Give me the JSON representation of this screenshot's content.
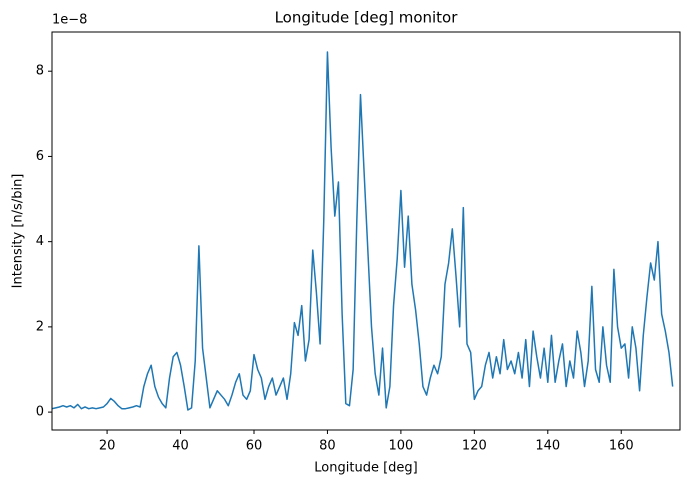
{
  "chart_data": {
    "type": "line",
    "title": "Longitude [deg] monitor",
    "x_label": "Longitude [deg]",
    "y_label": "Intensity [n/s/bin]",
    "y_offset_label": "1e−8",
    "x": [
      5,
      6,
      7,
      8,
      9,
      10,
      11,
      12,
      13,
      14,
      15,
      16,
      17,
      18,
      19,
      20,
      21,
      22,
      23,
      24,
      25,
      26,
      27,
      28,
      29,
      30,
      31,
      32,
      33,
      34,
      35,
      36,
      37,
      38,
      39,
      40,
      41,
      42,
      43,
      44,
      45,
      46,
      47,
      48,
      49,
      50,
      51,
      52,
      53,
      54,
      55,
      56,
      57,
      58,
      59,
      60,
      61,
      62,
      63,
      64,
      65,
      66,
      67,
      68,
      69,
      70,
      71,
      72,
      73,
      74,
      75,
      76,
      77,
      78,
      79,
      80,
      81,
      82,
      83,
      84,
      85,
      86,
      87,
      88,
      89,
      90,
      91,
      92,
      93,
      94,
      95,
      96,
      97,
      98,
      99,
      100,
      101,
      102,
      103,
      104,
      105,
      106,
      107,
      108,
      109,
      110,
      111,
      112,
      113,
      114,
      115,
      116,
      117,
      118,
      119,
      120,
      121,
      122,
      123,
      124,
      125,
      126,
      127,
      128,
      129,
      130,
      131,
      132,
      133,
      134,
      135,
      136,
      137,
      138,
      139,
      140,
      141,
      142,
      143,
      144,
      145,
      146,
      147,
      148,
      149,
      150,
      151,
      152,
      153,
      154,
      155,
      156,
      157,
      158,
      159,
      160,
      161,
      162,
      163,
      164,
      165,
      166,
      167,
      168,
      169,
      170,
      171,
      172,
      173,
      174
    ],
    "series": [
      {
        "name": "Intensity",
        "color": "#1f77b4",
        "values": [
          0.08,
          0.1,
          0.12,
          0.15,
          0.12,
          0.15,
          0.1,
          0.18,
          0.08,
          0.12,
          0.08,
          0.1,
          0.08,
          0.1,
          0.12,
          0.2,
          0.32,
          0.25,
          0.15,
          0.08,
          0.08,
          0.1,
          0.12,
          0.15,
          0.12,
          0.6,
          0.9,
          1.1,
          0.6,
          0.35,
          0.2,
          0.1,
          0.8,
          1.3,
          1.4,
          1.1,
          0.6,
          0.05,
          0.1,
          1.2,
          3.9,
          1.5,
          0.8,
          0.1,
          0.3,
          0.5,
          0.4,
          0.3,
          0.15,
          0.4,
          0.7,
          0.9,
          0.4,
          0.3,
          0.5,
          1.35,
          1.0,
          0.8,
          0.3,
          0.6,
          0.8,
          0.4,
          0.6,
          0.8,
          0.3,
          0.9,
          2.1,
          1.8,
          2.5,
          1.2,
          1.7,
          3.8,
          2.8,
          1.6,
          4.5,
          8.45,
          6.2,
          4.6,
          5.4,
          2.3,
          0.2,
          0.15,
          1.0,
          4.5,
          7.45,
          5.6,
          3.8,
          2.0,
          0.9,
          0.4,
          1.5,
          0.1,
          0.6,
          2.5,
          3.6,
          5.2,
          3.4,
          4.6,
          3.0,
          2.4,
          1.6,
          0.6,
          0.4,
          0.8,
          1.1,
          0.9,
          1.3,
          3.0,
          3.5,
          4.3,
          3.2,
          2.0,
          4.8,
          1.6,
          1.4,
          0.3,
          0.5,
          0.6,
          1.1,
          1.4,
          0.8,
          1.3,
          0.9,
          1.7,
          1.0,
          1.2,
          0.9,
          1.4,
          0.8,
          1.7,
          0.6,
          1.9,
          1.3,
          0.8,
          1.5,
          0.7,
          1.8,
          0.7,
          1.2,
          1.6,
          0.6,
          1.2,
          0.8,
          1.9,
          1.4,
          0.6,
          1.2,
          2.95,
          1.0,
          0.7,
          2.0,
          1.1,
          0.7,
          3.35,
          2.0,
          1.5,
          1.6,
          0.8,
          2.0,
          1.5,
          0.5,
          1.8,
          2.7,
          3.5,
          3.1,
          4.0,
          2.3,
          1.9,
          1.4,
          0.6
        ]
      }
    ],
    "xlim": [
      5,
      176
    ],
    "xticks": [
      20,
      40,
      60,
      80,
      100,
      120,
      140,
      160
    ],
    "ylim": [
      -0.42,
      8.92
    ],
    "yticks": [
      0,
      2,
      4,
      6,
      8
    ],
    "grid": false
  }
}
